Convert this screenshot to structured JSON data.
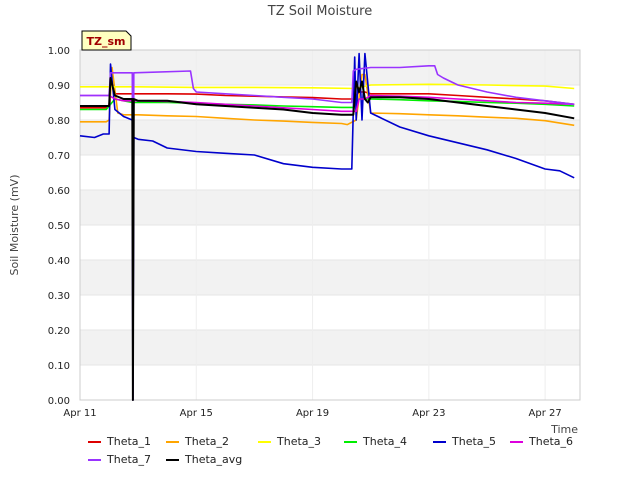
{
  "chart_data": {
    "type": "line",
    "title": "TZ Soil Moisture",
    "xlabel": "Time",
    "ylabel": "Soil Moisture (mV)",
    "badge": "TZ_sm",
    "ylim": [
      0.0,
      1.0
    ],
    "xlim": [
      0,
      17.2
    ],
    "x_ticks": [
      {
        "x": 0,
        "label": "Apr 11"
      },
      {
        "x": 4,
        "label": "Apr 15"
      },
      {
        "x": 8,
        "label": "Apr 19"
      },
      {
        "x": 12,
        "label": "Apr 23"
      },
      {
        "x": 16,
        "label": "Apr 27"
      }
    ],
    "y_ticks": [
      "0.00",
      "0.10",
      "0.20",
      "0.30",
      "0.40",
      "0.50",
      "0.60",
      "0.70",
      "0.80",
      "0.90",
      "1.00"
    ],
    "grid": true,
    "legend_position": "bottom",
    "series": [
      {
        "name": "Theta_1",
        "color": "#dd0000",
        "x": [
          0,
          0.9,
          1.0,
          1.05,
          1.2,
          1.5,
          1.8,
          2.0,
          3,
          4,
          5,
          6,
          7,
          8,
          9,
          9.4,
          9.6,
          9.8,
          10,
          11,
          12,
          13,
          14,
          15,
          16,
          17
        ],
        "y": [
          0.835,
          0.835,
          0.84,
          0.91,
          0.875,
          0.875,
          0.875,
          0.875,
          0.875,
          0.874,
          0.87,
          0.868,
          0.866,
          0.864,
          0.86,
          0.86,
          0.88,
          0.88,
          0.875,
          0.875,
          0.875,
          0.87,
          0.865,
          0.86,
          0.855,
          0.845
        ]
      },
      {
        "name": "Theta_2",
        "color": "#ffa500",
        "x": [
          0,
          0.9,
          1.0,
          1.1,
          1.3,
          1.5,
          2,
          3,
          4,
          5,
          6,
          7,
          8,
          9,
          9.2,
          9.5,
          9.7,
          9.8,
          10,
          11,
          12,
          13,
          14,
          15,
          16,
          17
        ],
        "y": [
          0.795,
          0.795,
          0.8,
          0.95,
          0.82,
          0.815,
          0.815,
          0.812,
          0.81,
          0.805,
          0.8,
          0.797,
          0.793,
          0.79,
          0.787,
          0.8,
          0.93,
          0.93,
          0.82,
          0.818,
          0.815,
          0.812,
          0.808,
          0.805,
          0.798,
          0.785
        ]
      },
      {
        "name": "Theta_3",
        "color": "#ffff00",
        "x": [
          0,
          2,
          4,
          6,
          8,
          9.5,
          10,
          12,
          14,
          16,
          17
        ],
        "y": [
          0.895,
          0.895,
          0.893,
          0.893,
          0.892,
          0.89,
          0.9,
          0.902,
          0.9,
          0.897,
          0.89
        ]
      },
      {
        "name": "Theta_4",
        "color": "#00ee00",
        "x": [
          0,
          0.9,
          1.0,
          1.2,
          1.8,
          2.0,
          3,
          4,
          5,
          6,
          7,
          8,
          9,
          9.4,
          9.6,
          10,
          11,
          12,
          13,
          14,
          15,
          16,
          17
        ],
        "y": [
          0.83,
          0.83,
          0.84,
          0.86,
          0.85,
          0.85,
          0.85,
          0.848,
          0.845,
          0.843,
          0.84,
          0.838,
          0.836,
          0.836,
          0.86,
          0.86,
          0.858,
          0.855,
          0.853,
          0.85,
          0.848,
          0.845,
          0.84
        ]
      },
      {
        "name": "Theta_5",
        "color": "#0000cc",
        "x": [
          0,
          0.5,
          0.8,
          1.0,
          1.05,
          1.2,
          1.5,
          1.8,
          1.82,
          1.85,
          2.0,
          2.5,
          3.0,
          4,
          5,
          6,
          7,
          8,
          9,
          9.35,
          9.45,
          9.5,
          9.6,
          9.7,
          9.8,
          10,
          11,
          12,
          13,
          14,
          15,
          16,
          16.5,
          17
        ],
        "y": [
          0.755,
          0.75,
          0.76,
          0.76,
          0.96,
          0.83,
          0.81,
          0.8,
          0.0,
          0.75,
          0.745,
          0.74,
          0.72,
          0.71,
          0.705,
          0.7,
          0.675,
          0.665,
          0.66,
          0.66,
          0.98,
          0.8,
          0.99,
          0.8,
          0.99,
          0.82,
          0.78,
          0.755,
          0.735,
          0.715,
          0.69,
          0.66,
          0.655,
          0.635
        ]
      },
      {
        "name": "Theta_6",
        "color": "#dd00dd",
        "x": [
          0,
          0.9,
          1.0,
          1.2,
          1.5,
          2,
          3,
          4,
          5,
          6,
          7,
          8,
          9,
          9.5,
          9.6,
          9.8,
          10,
          11,
          12,
          13,
          14,
          15,
          16,
          17
        ],
        "y": [
          0.87,
          0.87,
          0.87,
          0.86,
          0.855,
          0.855,
          0.853,
          0.85,
          0.845,
          0.84,
          0.835,
          0.83,
          0.825,
          0.825,
          0.86,
          0.86,
          0.87,
          0.868,
          0.865,
          0.86,
          0.855,
          0.85,
          0.848,
          0.845
        ]
      },
      {
        "name": "Theta_7",
        "color": "#9933ff",
        "x": [
          0,
          0.9,
          1.0,
          1.05,
          1.8,
          1.82,
          1.85,
          3.8,
          3.9,
          4.0,
          5,
          6,
          7,
          8,
          9,
          9.35,
          9.4,
          9.5,
          10,
          11,
          12,
          12.2,
          12.3,
          12.5,
          13,
          14,
          15,
          16,
          17
        ],
        "y": [
          0.87,
          0.87,
          0.87,
          0.935,
          0.935,
          0.0,
          0.935,
          0.94,
          0.89,
          0.88,
          0.875,
          0.87,
          0.865,
          0.86,
          0.85,
          0.85,
          0.94,
          0.945,
          0.95,
          0.95,
          0.955,
          0.955,
          0.93,
          0.92,
          0.9,
          0.88,
          0.865,
          0.855,
          0.845
        ]
      },
      {
        "name": "Theta_avg",
        "color": "#000000",
        "x": [
          0,
          0.9,
          1.0,
          1.05,
          1.2,
          1.5,
          1.8,
          1.82,
          1.85,
          2.0,
          3,
          4,
          5,
          6,
          7,
          8,
          9,
          9.4,
          9.5,
          9.6,
          9.7,
          9.8,
          9.9,
          10,
          11,
          12,
          13,
          14,
          15,
          16,
          17
        ],
        "y": [
          0.84,
          0.84,
          0.84,
          0.92,
          0.87,
          0.86,
          0.86,
          0.0,
          0.86,
          0.855,
          0.855,
          0.845,
          0.84,
          0.835,
          0.83,
          0.82,
          0.815,
          0.815,
          0.91,
          0.88,
          0.91,
          0.86,
          0.85,
          0.865,
          0.865,
          0.86,
          0.85,
          0.84,
          0.83,
          0.82,
          0.805
        ]
      }
    ]
  }
}
